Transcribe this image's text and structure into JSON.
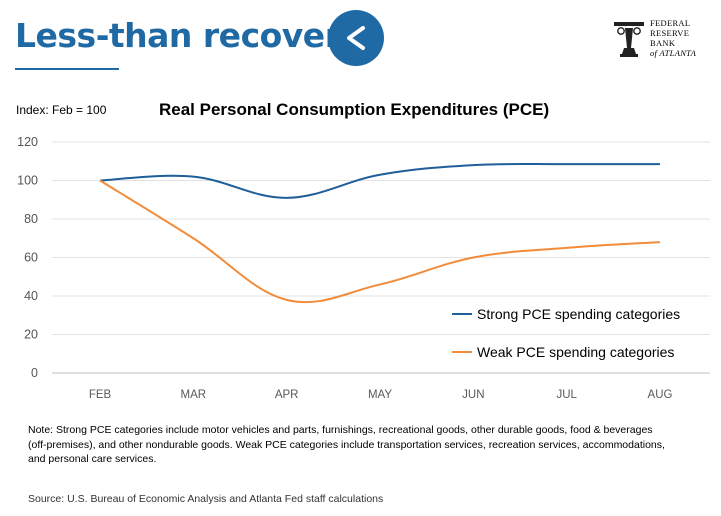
{
  "header": {
    "title": "Less-than recovery",
    "back_icon": "chevron-left-icon",
    "accent_color": "#1f6aa5"
  },
  "logo": {
    "lines": [
      "FEDERAL",
      "RESERVE",
      "BANK",
      "of ATLANTA"
    ]
  },
  "chart_data": {
    "type": "line",
    "title": "Real Personal Consumption Expenditures (PCE)",
    "index_label": "Index:  Feb = 100",
    "categories": [
      "FEB",
      "MAR",
      "APR",
      "MAY",
      "JUN",
      "JUL",
      "AUG"
    ],
    "ylim": [
      0,
      120
    ],
    "yticks": [
      0,
      20,
      40,
      60,
      80,
      100,
      120
    ],
    "grid": true,
    "legend_position": "lower-right",
    "series": [
      {
        "name": "Strong PCE spending categories",
        "color": "#1f5f99",
        "values": [
          100,
          102,
          91,
          103,
          108,
          108.5,
          108.5
        ]
      },
      {
        "name": "Weak PCE spending categories",
        "color": "#f28c3a",
        "values": [
          100,
          70,
          38,
          46,
          60,
          65,
          68
        ]
      }
    ]
  },
  "footer": {
    "note": "Note:  Strong PCE categories include motor vehicles and parts, furnishings, recreational goods, other durable goods, food & beverages (off-premises), and other nondurable goods.  Weak PCE categories include transportation services, recreation services, accommodations, and personal care services.",
    "source": "Source:  U.S. Bureau of Economic Analysis and Atlanta Fed staff calculations"
  }
}
